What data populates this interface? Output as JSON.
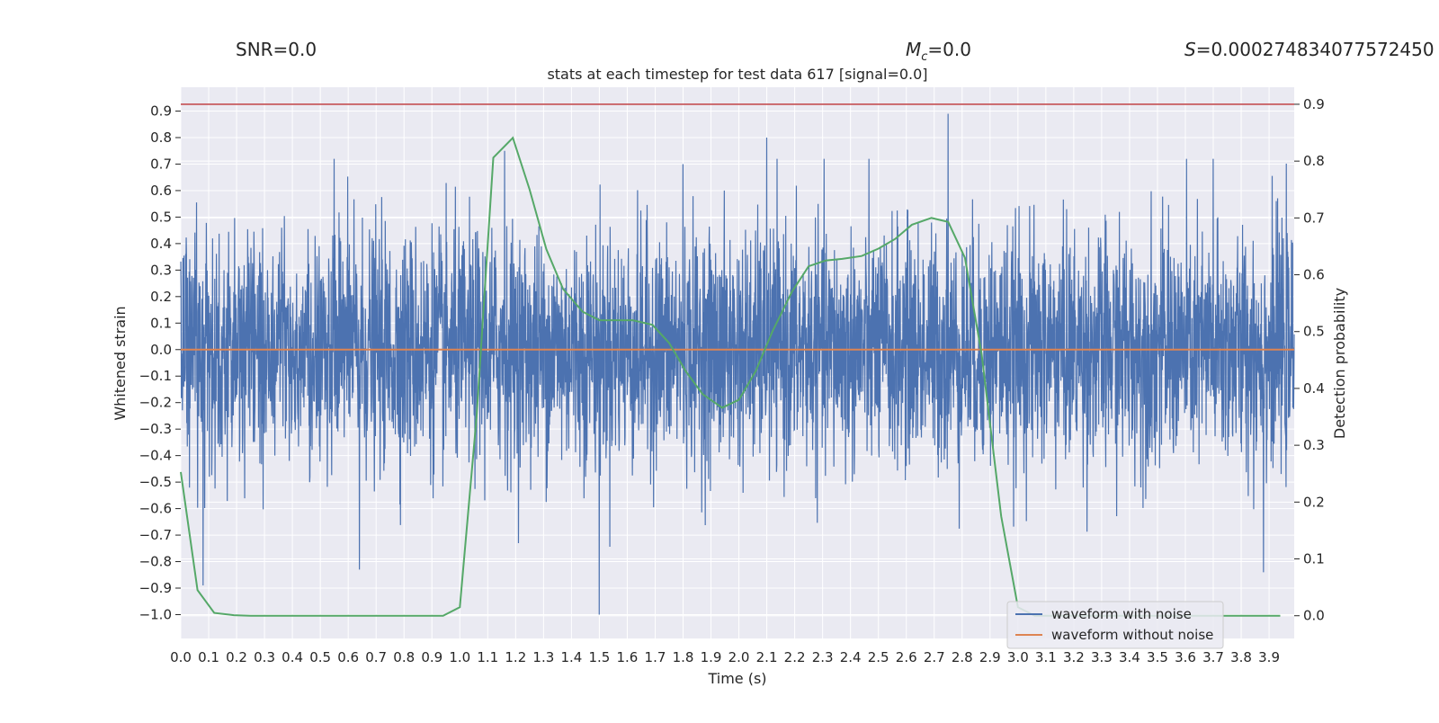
{
  "chart_data": {
    "type": "line",
    "title": "stats at each timestep for test data 617 [signal=0.0]",
    "header_snr": "SNR=0.0",
    "header_mc_prefix": "M",
    "header_mc_sub": "c",
    "header_mc_value": "=0.0",
    "header_s_symbol": "S",
    "header_s_value": "=0.000274834077572450",
    "xlabel": "Time (s)",
    "ylabel_left": "Whitened strain",
    "ylabel_right": "Detection probability",
    "xlim": [
      0.0,
      3.99
    ],
    "ylim_left": [
      -1.09,
      0.99
    ],
    "ylim_right": [
      -0.04,
      0.93
    ],
    "xticks": [
      0.0,
      0.1,
      0.2,
      0.3,
      0.4,
      0.5,
      0.6,
      0.7,
      0.8,
      0.9,
      1.0,
      1.1,
      1.2,
      1.3,
      1.4,
      1.5,
      1.6,
      1.7,
      1.8,
      1.9,
      2.0,
      2.1,
      2.2,
      2.3,
      2.4,
      2.5,
      2.6,
      2.7,
      2.8,
      2.9,
      3.0,
      3.1,
      3.2,
      3.3,
      3.4,
      3.5,
      3.6,
      3.7,
      3.8,
      3.9
    ],
    "yticks_left": [
      -1.0,
      -0.9,
      -0.8,
      -0.7,
      -0.6,
      -0.5,
      -0.4,
      -0.3,
      -0.2,
      -0.1,
      0.0,
      0.1,
      0.2,
      0.3,
      0.4,
      0.5,
      0.6,
      0.7,
      0.8,
      0.9
    ],
    "yticks_right": [
      0.0,
      0.1,
      0.2,
      0.3,
      0.4,
      0.5,
      0.6,
      0.7,
      0.8,
      0.9
    ],
    "threshold_line": {
      "axis": "right",
      "y": 0.9,
      "color": "#c44e52"
    },
    "series": [
      {
        "name": "waveform with noise",
        "axis": "left",
        "color": "#4c72b0",
        "kind": "noise",
        "samples": 4096,
        "sigma": 0.22,
        "peaks": [
          {
            "t": 2.75,
            "v": 0.89
          },
          {
            "t": 2.1,
            "v": 0.8
          },
          {
            "t": 1.5,
            "v": -1.0
          },
          {
            "t": 0.08,
            "v": -0.89
          },
          {
            "t": 3.88,
            "v": -0.84
          },
          {
            "t": 0.64,
            "v": -0.83
          },
          {
            "t": 0.55,
            "v": 0.72
          },
          {
            "t": 1.8,
            "v": 0.7
          },
          {
            "t": 3.7,
            "v": 0.72
          },
          {
            "t": 1.16,
            "v": 0.75
          }
        ]
      },
      {
        "name": "waveform without noise",
        "axis": "left",
        "color": "#dd8452",
        "x": [
          0.0,
          3.99
        ],
        "y": [
          0.0,
          0.0
        ]
      },
      {
        "name": "detection probability",
        "axis": "right",
        "color": "#55a868",
        "x": [
          0.0,
          0.06,
          0.12,
          0.19,
          0.25,
          0.31,
          0.37,
          0.44,
          0.5,
          0.56,
          0.62,
          0.69,
          0.75,
          0.81,
          0.87,
          0.94,
          1.0,
          1.06,
          1.12,
          1.19,
          1.25,
          1.31,
          1.37,
          1.44,
          1.5,
          1.56,
          1.62,
          1.69,
          1.75,
          1.81,
          1.87,
          1.94,
          2.0,
          2.06,
          2.12,
          2.19,
          2.25,
          2.31,
          2.37,
          2.44,
          2.5,
          2.56,
          2.62,
          2.69,
          2.75,
          2.81,
          2.87,
          2.94,
          3.0,
          3.06,
          3.12,
          3.19,
          3.25,
          3.31,
          3.37,
          3.44,
          3.5,
          3.56,
          3.62,
          3.69,
          3.75,
          3.81,
          3.87,
          3.94
        ],
        "y": [
          0.253,
          0.045,
          0.005,
          0.001,
          0.0,
          0.0,
          0.0,
          0.0,
          0.0,
          0.0,
          0.0,
          0.0,
          0.0,
          0.0,
          0.0,
          0.0,
          0.015,
          0.35,
          0.806,
          0.841,
          0.75,
          0.645,
          0.575,
          0.535,
          0.52,
          0.52,
          0.52,
          0.512,
          0.48,
          0.43,
          0.39,
          0.366,
          0.38,
          0.43,
          0.5,
          0.57,
          0.615,
          0.625,
          0.628,
          0.633,
          0.646,
          0.663,
          0.688,
          0.7,
          0.693,
          0.63,
          0.46,
          0.175,
          0.015,
          0.0,
          0.0,
          0.0,
          0.0,
          0.0,
          0.0,
          0.0,
          0.0,
          0.0,
          0.0,
          0.0,
          0.0,
          0.0,
          0.0,
          0.0
        ]
      }
    ],
    "legend": {
      "placement": "lower-right",
      "entries": [
        {
          "label": "waveform with noise",
          "color": "#4c72b0"
        },
        {
          "label": "waveform without noise",
          "color": "#dd8452"
        }
      ]
    },
    "colors": {
      "plot_bg": "#eaeaf2",
      "grid": "#ffffff",
      "text": "#262626"
    }
  }
}
